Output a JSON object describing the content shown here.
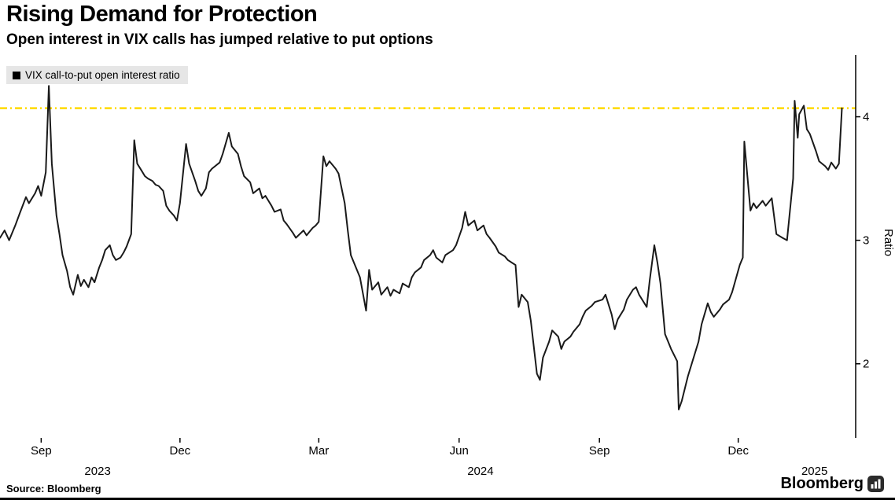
{
  "chart_data": {
    "type": "line",
    "title": "Rising Demand for Protection",
    "subtitle": "Open interest in VIX calls has jumped relative to put options",
    "series_name": "VIX call-to-put open interest ratio",
    "line_color": "#1a1a1a",
    "reference_line": {
      "value": 4.07,
      "color": "#ffd900",
      "style": "dash-dot"
    },
    "grid": false,
    "legend_position": "top-left",
    "ylabel": "Ratio",
    "ylim": [
      1.4,
      4.5
    ],
    "yticks": [
      4,
      3,
      2
    ],
    "x_domain": [
      "2023-08-05",
      "2025-02-16"
    ],
    "xticks": [
      {
        "date": "2023-09-01",
        "label": "Sep"
      },
      {
        "date": "2023-12-01",
        "label": "Dec"
      },
      {
        "date": "2024-03-01",
        "label": "Mar"
      },
      {
        "date": "2024-06-01",
        "label": "Jun"
      },
      {
        "date": "2024-09-01",
        "label": "Sep"
      },
      {
        "date": "2024-12-01",
        "label": "Dec"
      }
    ],
    "year_labels": [
      {
        "date": "2023-10-08",
        "label": "2023"
      },
      {
        "date": "2024-06-15",
        "label": "2024"
      },
      {
        "date": "2025-01-20",
        "label": "2025"
      }
    ],
    "points": [
      [
        "2023-08-05",
        3.02
      ],
      [
        "2023-08-08",
        3.08
      ],
      [
        "2023-08-11",
        3.0
      ],
      [
        "2023-08-15",
        3.12
      ],
      [
        "2023-08-18",
        3.22
      ],
      [
        "2023-08-22",
        3.35
      ],
      [
        "2023-08-24",
        3.3
      ],
      [
        "2023-08-28",
        3.38
      ],
      [
        "2023-08-30",
        3.44
      ],
      [
        "2023-09-01",
        3.36
      ],
      [
        "2023-09-04",
        3.55
      ],
      [
        "2023-09-06",
        4.25
      ],
      [
        "2023-09-08",
        3.62
      ],
      [
        "2023-09-11",
        3.2
      ],
      [
        "2023-09-13",
        3.05
      ],
      [
        "2023-09-15",
        2.88
      ],
      [
        "2023-09-18",
        2.75
      ],
      [
        "2023-09-20",
        2.62
      ],
      [
        "2023-09-22",
        2.56
      ],
      [
        "2023-09-25",
        2.72
      ],
      [
        "2023-09-27",
        2.63
      ],
      [
        "2023-09-29",
        2.68
      ],
      [
        "2023-10-02",
        2.62
      ],
      [
        "2023-10-04",
        2.7
      ],
      [
        "2023-10-06",
        2.66
      ],
      [
        "2023-10-09",
        2.78
      ],
      [
        "2023-10-11",
        2.84
      ],
      [
        "2023-10-13",
        2.92
      ],
      [
        "2023-10-16",
        2.96
      ],
      [
        "2023-10-18",
        2.88
      ],
      [
        "2023-10-20",
        2.84
      ],
      [
        "2023-10-23",
        2.86
      ],
      [
        "2023-10-25",
        2.9
      ],
      [
        "2023-10-27",
        2.95
      ],
      [
        "2023-10-30",
        3.05
      ],
      [
        "2023-11-01",
        3.81
      ],
      [
        "2023-11-03",
        3.62
      ],
      [
        "2023-11-06",
        3.56
      ],
      [
        "2023-11-08",
        3.52
      ],
      [
        "2023-11-10",
        3.5
      ],
      [
        "2023-11-13",
        3.48
      ],
      [
        "2023-11-15",
        3.45
      ],
      [
        "2023-11-17",
        3.44
      ],
      [
        "2023-11-20",
        3.4
      ],
      [
        "2023-11-22",
        3.28
      ],
      [
        "2023-11-24",
        3.24
      ],
      [
        "2023-11-27",
        3.2
      ],
      [
        "2023-11-29",
        3.16
      ],
      [
        "2023-12-01",
        3.3
      ],
      [
        "2023-12-05",
        3.78
      ],
      [
        "2023-12-07",
        3.62
      ],
      [
        "2023-12-11",
        3.48
      ],
      [
        "2023-12-13",
        3.4
      ],
      [
        "2023-12-15",
        3.36
      ],
      [
        "2023-12-18",
        3.42
      ],
      [
        "2023-12-20",
        3.55
      ],
      [
        "2023-12-22",
        3.58
      ],
      [
        "2023-12-27",
        3.63
      ],
      [
        "2023-12-29",
        3.7
      ],
      [
        "2024-01-02",
        3.87
      ],
      [
        "2024-01-04",
        3.76
      ],
      [
        "2024-01-08",
        3.7
      ],
      [
        "2024-01-10",
        3.6
      ],
      [
        "2024-01-12",
        3.52
      ],
      [
        "2024-01-16",
        3.47
      ],
      [
        "2024-01-18",
        3.38
      ],
      [
        "2024-01-22",
        3.42
      ],
      [
        "2024-01-24",
        3.34
      ],
      [
        "2024-01-26",
        3.36
      ],
      [
        "2024-01-30",
        3.28
      ],
      [
        "2024-02-01",
        3.23
      ],
      [
        "2024-02-05",
        3.25
      ],
      [
        "2024-02-07",
        3.16
      ],
      [
        "2024-02-09",
        3.13
      ],
      [
        "2024-02-13",
        3.06
      ],
      [
        "2024-02-15",
        3.02
      ],
      [
        "2024-02-20",
        3.08
      ],
      [
        "2024-02-22",
        3.04
      ],
      [
        "2024-02-26",
        3.1
      ],
      [
        "2024-02-28",
        3.12
      ],
      [
        "2024-03-01",
        3.15
      ],
      [
        "2024-03-04",
        3.68
      ],
      [
        "2024-03-06",
        3.6
      ],
      [
        "2024-03-08",
        3.64
      ],
      [
        "2024-03-12",
        3.58
      ],
      [
        "2024-03-14",
        3.54
      ],
      [
        "2024-03-18",
        3.3
      ],
      [
        "2024-03-20",
        3.08
      ],
      [
        "2024-03-22",
        2.88
      ],
      [
        "2024-03-26",
        2.76
      ],
      [
        "2024-03-28",
        2.7
      ],
      [
        "2024-04-01",
        2.43
      ],
      [
        "2024-04-03",
        2.76
      ],
      [
        "2024-04-05",
        2.6
      ],
      [
        "2024-04-09",
        2.66
      ],
      [
        "2024-04-11",
        2.56
      ],
      [
        "2024-04-15",
        2.62
      ],
      [
        "2024-04-17",
        2.55
      ],
      [
        "2024-04-19",
        2.6
      ],
      [
        "2024-04-23",
        2.57
      ],
      [
        "2024-04-25",
        2.65
      ],
      [
        "2024-04-29",
        2.62
      ],
      [
        "2024-05-01",
        2.7
      ],
      [
        "2024-05-03",
        2.74
      ],
      [
        "2024-05-07",
        2.78
      ],
      [
        "2024-05-09",
        2.84
      ],
      [
        "2024-05-13",
        2.88
      ],
      [
        "2024-05-15",
        2.92
      ],
      [
        "2024-05-17",
        2.86
      ],
      [
        "2024-05-21",
        2.82
      ],
      [
        "2024-05-23",
        2.88
      ],
      [
        "2024-05-28",
        2.92
      ],
      [
        "2024-05-30",
        2.96
      ],
      [
        "2024-06-03",
        3.1
      ],
      [
        "2024-06-05",
        3.23
      ],
      [
        "2024-06-07",
        3.12
      ],
      [
        "2024-06-11",
        3.16
      ],
      [
        "2024-06-13",
        3.08
      ],
      [
        "2024-06-17",
        3.12
      ],
      [
        "2024-06-19",
        3.05
      ],
      [
        "2024-06-21",
        3.02
      ],
      [
        "2024-06-25",
        2.95
      ],
      [
        "2024-06-27",
        2.9
      ],
      [
        "2024-07-01",
        2.87
      ],
      [
        "2024-07-03",
        2.84
      ],
      [
        "2024-07-08",
        2.8
      ],
      [
        "2024-07-10",
        2.46
      ],
      [
        "2024-07-12",
        2.56
      ],
      [
        "2024-07-16",
        2.5
      ],
      [
        "2024-07-18",
        2.35
      ],
      [
        "2024-07-22",
        1.92
      ],
      [
        "2024-07-24",
        1.87
      ],
      [
        "2024-07-26",
        2.05
      ],
      [
        "2024-07-30",
        2.18
      ],
      [
        "2024-08-01",
        2.27
      ],
      [
        "2024-08-05",
        2.22
      ],
      [
        "2024-08-07",
        2.12
      ],
      [
        "2024-08-09",
        2.18
      ],
      [
        "2024-08-13",
        2.22
      ],
      [
        "2024-08-15",
        2.26
      ],
      [
        "2024-08-19",
        2.32
      ],
      [
        "2024-08-21",
        2.38
      ],
      [
        "2024-08-23",
        2.43
      ],
      [
        "2024-08-27",
        2.47
      ],
      [
        "2024-08-29",
        2.5
      ],
      [
        "2024-09-03",
        2.52
      ],
      [
        "2024-09-05",
        2.56
      ],
      [
        "2024-09-09",
        2.4
      ],
      [
        "2024-09-11",
        2.28
      ],
      [
        "2024-09-13",
        2.36
      ],
      [
        "2024-09-17",
        2.44
      ],
      [
        "2024-09-19",
        2.52
      ],
      [
        "2024-09-23",
        2.6
      ],
      [
        "2024-09-25",
        2.62
      ],
      [
        "2024-09-27",
        2.56
      ],
      [
        "2024-09-30",
        2.5
      ],
      [
        "2024-10-02",
        2.46
      ],
      [
        "2024-10-04",
        2.68
      ],
      [
        "2024-10-07",
        2.96
      ],
      [
        "2024-10-09",
        2.82
      ],
      [
        "2024-10-11",
        2.65
      ],
      [
        "2024-10-14",
        2.24
      ],
      [
        "2024-10-16",
        2.18
      ],
      [
        "2024-10-18",
        2.12
      ],
      [
        "2024-10-22",
        2.02
      ],
      [
        "2024-10-23",
        1.63
      ],
      [
        "2024-10-25",
        1.7
      ],
      [
        "2024-10-29",
        1.9
      ],
      [
        "2024-11-01",
        2.02
      ],
      [
        "2024-11-05",
        2.18
      ],
      [
        "2024-11-07",
        2.32
      ],
      [
        "2024-11-11",
        2.49
      ],
      [
        "2024-11-13",
        2.42
      ],
      [
        "2024-11-15",
        2.38
      ],
      [
        "2024-11-19",
        2.44
      ],
      [
        "2024-11-21",
        2.48
      ],
      [
        "2024-11-25",
        2.52
      ],
      [
        "2024-11-27",
        2.58
      ],
      [
        "2024-12-02",
        2.8
      ],
      [
        "2024-12-04",
        2.86
      ],
      [
        "2024-12-05",
        3.8
      ],
      [
        "2024-12-09",
        3.24
      ],
      [
        "2024-12-11",
        3.3
      ],
      [
        "2024-12-13",
        3.26
      ],
      [
        "2024-12-17",
        3.32
      ],
      [
        "2024-12-19",
        3.28
      ],
      [
        "2024-12-23",
        3.34
      ],
      [
        "2024-12-26",
        3.05
      ],
      [
        "2024-12-30",
        3.02
      ],
      [
        "2025-01-02",
        3.0
      ],
      [
        "2025-01-06",
        3.5
      ],
      [
        "2025-01-07",
        4.13
      ],
      [
        "2025-01-09",
        3.83
      ],
      [
        "2025-01-10",
        4.02
      ],
      [
        "2025-01-13",
        4.09
      ],
      [
        "2025-01-15",
        3.9
      ],
      [
        "2025-01-17",
        3.86
      ],
      [
        "2025-01-21",
        3.72
      ],
      [
        "2025-01-23",
        3.64
      ],
      [
        "2025-01-27",
        3.6
      ],
      [
        "2025-01-29",
        3.57
      ],
      [
        "2025-01-31",
        3.63
      ],
      [
        "2025-02-03",
        3.58
      ],
      [
        "2025-02-05",
        3.62
      ],
      [
        "2025-02-07",
        4.07
      ]
    ]
  },
  "footer": {
    "source": "Source: Bloomberg",
    "brand": "Bloomberg"
  }
}
